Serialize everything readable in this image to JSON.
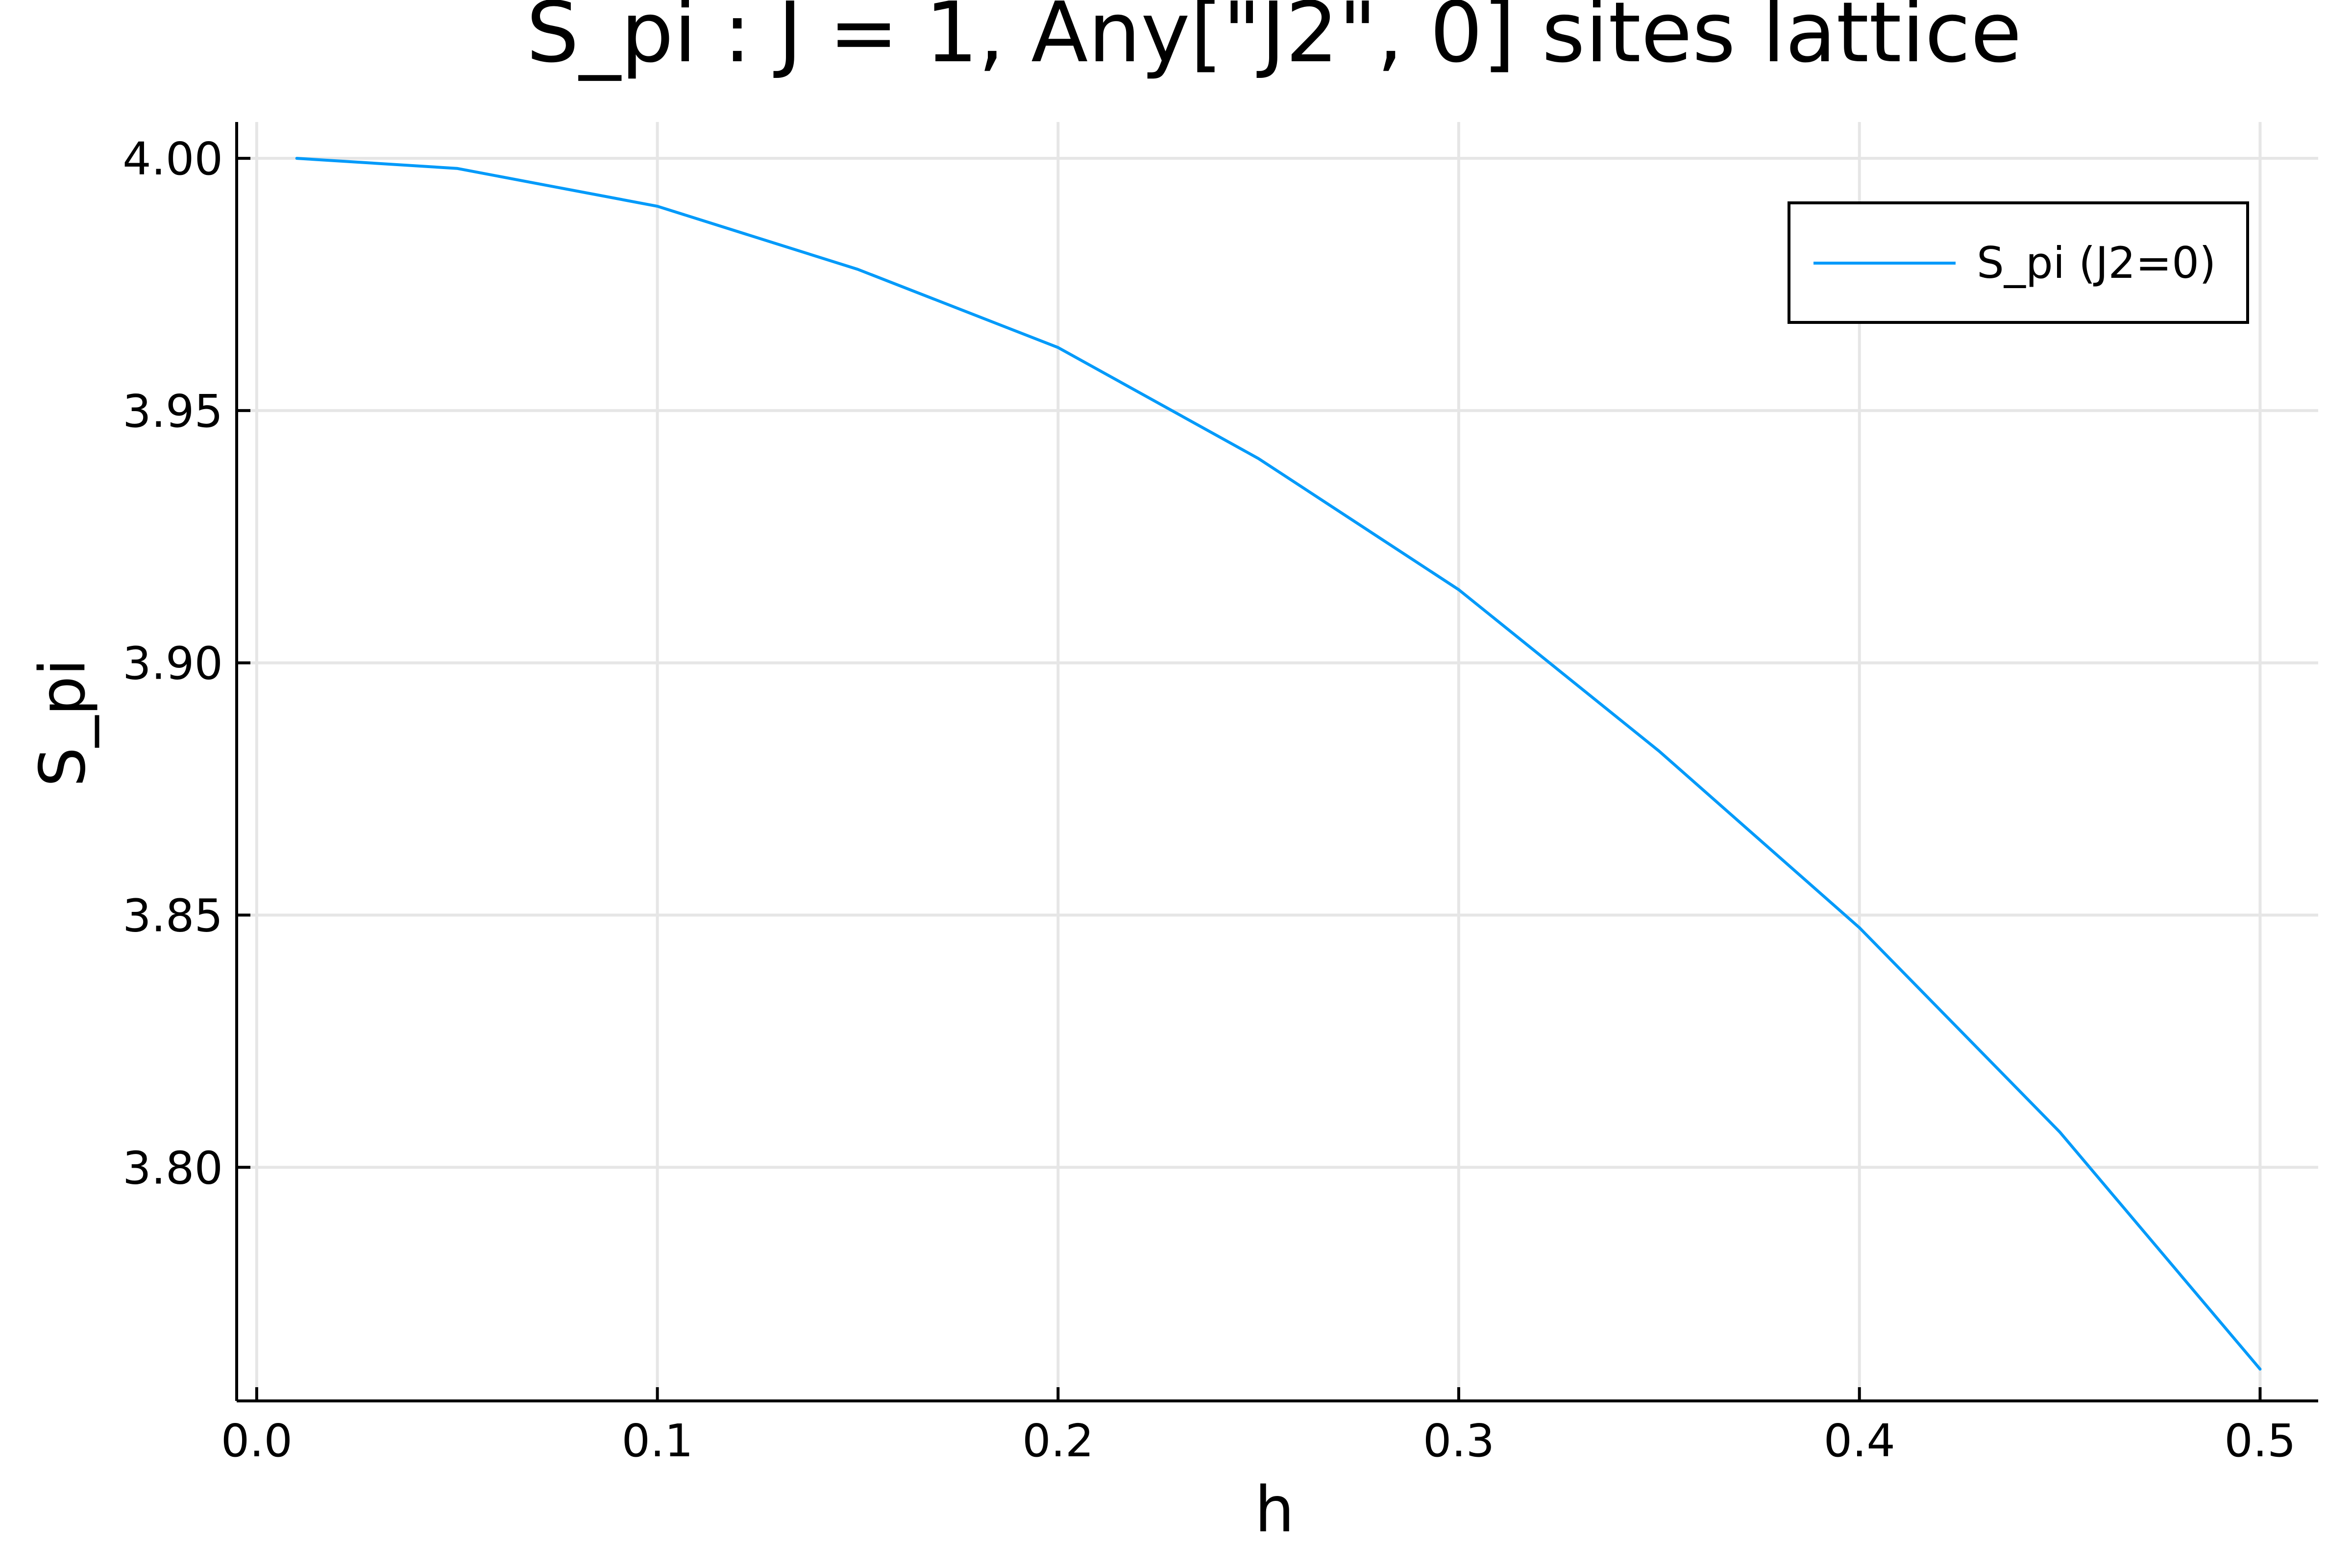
{
  "chart_data": {
    "type": "line",
    "title": "S_pi : J = 1, Any[\"J2\", 0] sites lattice",
    "xlabel": "h",
    "ylabel": "S_pi",
    "xlim": [
      -0.005,
      0.5145
    ],
    "ylim": [
      3.7537,
      4.0072
    ],
    "x_ticks": [
      0.0,
      0.1,
      0.2,
      0.3,
      0.4,
      0.5
    ],
    "x_tick_labels": [
      "0.0",
      "0.1",
      "0.2",
      "0.3",
      "0.4",
      "0.5"
    ],
    "y_ticks": [
      3.8,
      3.85,
      3.9,
      3.95,
      4.0
    ],
    "y_tick_labels": [
      "3.80",
      "3.85",
      "3.90",
      "3.95",
      "4.00"
    ],
    "grid": true,
    "legend_position": "top-right",
    "series": [
      {
        "name": "S_pi (J2=0)",
        "color": "#009AFA",
        "x": [
          0.01,
          0.05,
          0.1,
          0.15,
          0.2,
          0.25,
          0.3,
          0.35,
          0.4,
          0.45,
          0.5
        ],
        "y": [
          4.0,
          3.998,
          3.9905,
          3.978,
          3.9625,
          3.9405,
          3.9145,
          3.8825,
          3.8475,
          3.807,
          3.76
        ]
      }
    ]
  }
}
